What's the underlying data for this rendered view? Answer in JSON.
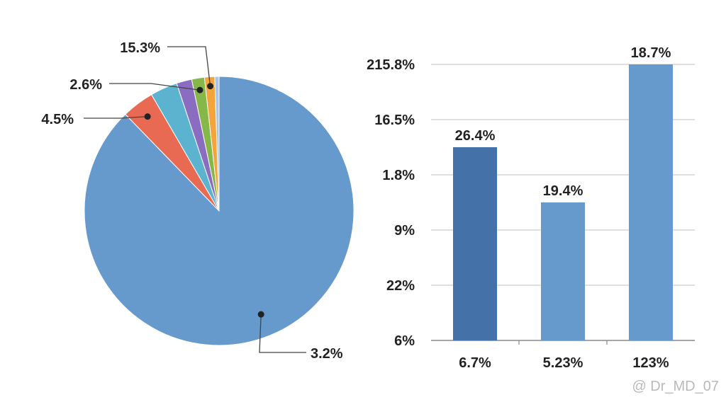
{
  "colors": {
    "bar_dark": "#4472a8",
    "bar_light": "#6699cc",
    "grid": "#cccccc",
    "axis": "#888888",
    "leader": "#444444",
    "text": "#222222"
  },
  "watermark": "@ Dr_MD_07",
  "chart_data": [
    {
      "type": "pie",
      "slices": [
        {
          "label": "3.2%",
          "value": 86.0,
          "color": "#6699cc",
          "labeled": true
        },
        {
          "label": "4.5%",
          "value": 3.8,
          "color": "#e86a53",
          "labeled": true
        },
        {
          "label": "",
          "value": 3.2,
          "color": "#5bb3cf",
          "labeled": false
        },
        {
          "label": "",
          "value": 1.8,
          "color": "#8a6cc0",
          "labeled": false
        },
        {
          "label": "2.6%",
          "value": 1.5,
          "color": "#86b749",
          "labeled": true
        },
        {
          "label": "15.3%",
          "value": 1.2,
          "color": "#f3a53b",
          "labeled": true
        },
        {
          "label": "",
          "value": 0.5,
          "color": "#a9c5e6",
          "labeled": false
        }
      ]
    },
    {
      "type": "bar",
      "categories": [
        "6.7%",
        "5.23%",
        "123%"
      ],
      "values": [
        3.5,
        2.5,
        5.0
      ],
      "data_labels": [
        "26.4%",
        "19.4%",
        "18.7%"
      ],
      "bar_colors": [
        "#4472a8",
        "#6699cc",
        "#6699cc"
      ],
      "ytick_labels": [
        "6%",
        "22%",
        "9%",
        "1.8%",
        "16.5%",
        "215.8%"
      ],
      "ytick_values": [
        0,
        1,
        2,
        3,
        4,
        5
      ],
      "ylim": [
        0,
        5
      ],
      "grid": true
    }
  ]
}
